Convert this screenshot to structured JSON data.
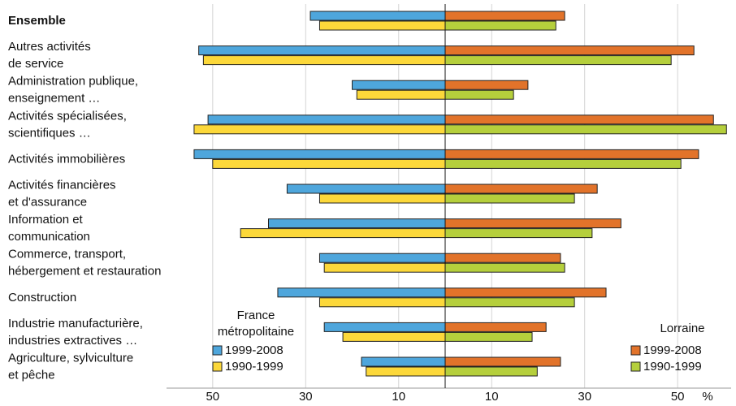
{
  "chart_data": {
    "type": "bar",
    "categories": [
      [
        "Ensemble"
      ],
      [
        "Autres activités",
        "de service"
      ],
      [
        "Administration publique,",
        "enseignement …"
      ],
      [
        "Activités spécialisées,",
        "scientifiques …"
      ],
      [
        "Activités immobilières"
      ],
      [
        "Activités financières",
        "et d'assurance"
      ],
      [
        "Information et",
        "communication"
      ],
      [
        "Commerce, transport,",
        "hébergement et restauration"
      ],
      [
        "Construction"
      ],
      [
        "Industrie manufacturière,",
        "industries extractives …"
      ],
      [
        "Agriculture, sylviculture",
        "et pêche"
      ]
    ],
    "groups": [
      {
        "name": [
          "France",
          "métropolitaine"
        ],
        "side": "left",
        "series": [
          {
            "name": "1999-2008",
            "color": "#4ea6dc",
            "values": [
              29,
              53,
              20,
              51,
              54,
              34,
              38,
              27,
              36,
              26,
              18
            ]
          },
          {
            "name": "1990-1999",
            "color": "#fcd83a",
            "values": [
              27,
              52,
              19,
              54,
              50,
              27,
              44,
              26,
              27,
              22,
              17
            ]
          }
        ]
      },
      {
        "name": [
          "Lorraine"
        ],
        "side": "right",
        "series": [
          {
            "name": "1999-2008",
            "color": "#e2732a",
            "values": [
              25.7,
              53.5,
              17.8,
              57.7,
              54.5,
              32.7,
              37.8,
              24.8,
              34.6,
              21.7,
              24.8
            ]
          },
          {
            "name": "1990-1999",
            "color": "#b5cf3c",
            "values": [
              23.8,
              48.6,
              14.7,
              60.5,
              50.7,
              27.8,
              31.6,
              25.7,
              27.8,
              18.7,
              19.8
            ]
          }
        ]
      }
    ],
    "xlim": [
      0,
      61.5
    ],
    "xticks": [
      10,
      30,
      50
    ],
    "x_unit": "%",
    "grid": true
  }
}
